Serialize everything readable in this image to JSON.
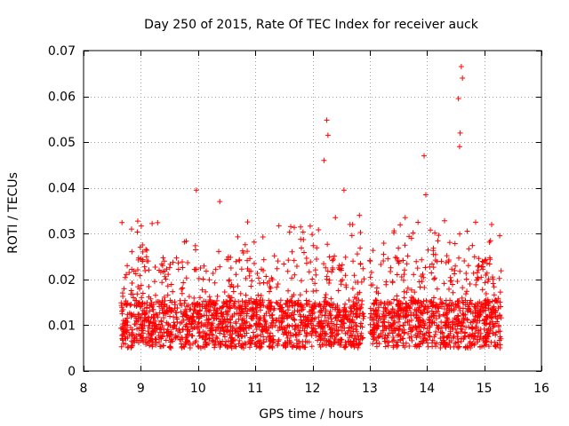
{
  "chart_data": {
    "type": "scatter",
    "title": "Day 250 of 2015, Rate Of TEC Index for receiver auck",
    "xlabel": "GPS time / hours",
    "ylabel": "ROTI / TECUs",
    "xlim": [
      8,
      16
    ],
    "ylim": [
      0,
      0.07
    ],
    "xticks": [
      "8",
      "9",
      "10",
      "11",
      "12",
      "13",
      "14",
      "15",
      "16"
    ],
    "yticks": [
      "0",
      "0.01",
      "0.02",
      "0.03",
      "0.04",
      "0.05",
      "0.06",
      "0.07"
    ],
    "grid": true,
    "marker": "+",
    "color": "#ff0000",
    "series": [
      {
        "name": "ROTI",
        "x_range": [
          8.65,
          15.3
        ],
        "gap": [
          12.9,
          13.0
        ],
        "baseline_band": [
          0.005,
          0.02
        ],
        "notable_points": [
          {
            "x": 9.97,
            "y": 0.0395
          },
          {
            "x": 10.38,
            "y": 0.037
          },
          {
            "x": 12.2,
            "y": 0.046
          },
          {
            "x": 12.25,
            "y": 0.0548
          },
          {
            "x": 12.27,
            "y": 0.0515
          },
          {
            "x": 12.4,
            "y": 0.0335
          },
          {
            "x": 12.55,
            "y": 0.0395
          },
          {
            "x": 12.82,
            "y": 0.034
          },
          {
            "x": 13.62,
            "y": 0.0335
          },
          {
            "x": 13.95,
            "y": 0.047
          },
          {
            "x": 13.98,
            "y": 0.0385
          },
          {
            "x": 14.55,
            "y": 0.0595
          },
          {
            "x": 14.6,
            "y": 0.0665
          },
          {
            "x": 14.62,
            "y": 0.064
          },
          {
            "x": 14.58,
            "y": 0.052
          },
          {
            "x": 14.57,
            "y": 0.049
          },
          {
            "x": 14.85,
            "y": 0.0325
          },
          {
            "x": 15.05,
            "y": 0.0235
          }
        ]
      }
    ]
  }
}
